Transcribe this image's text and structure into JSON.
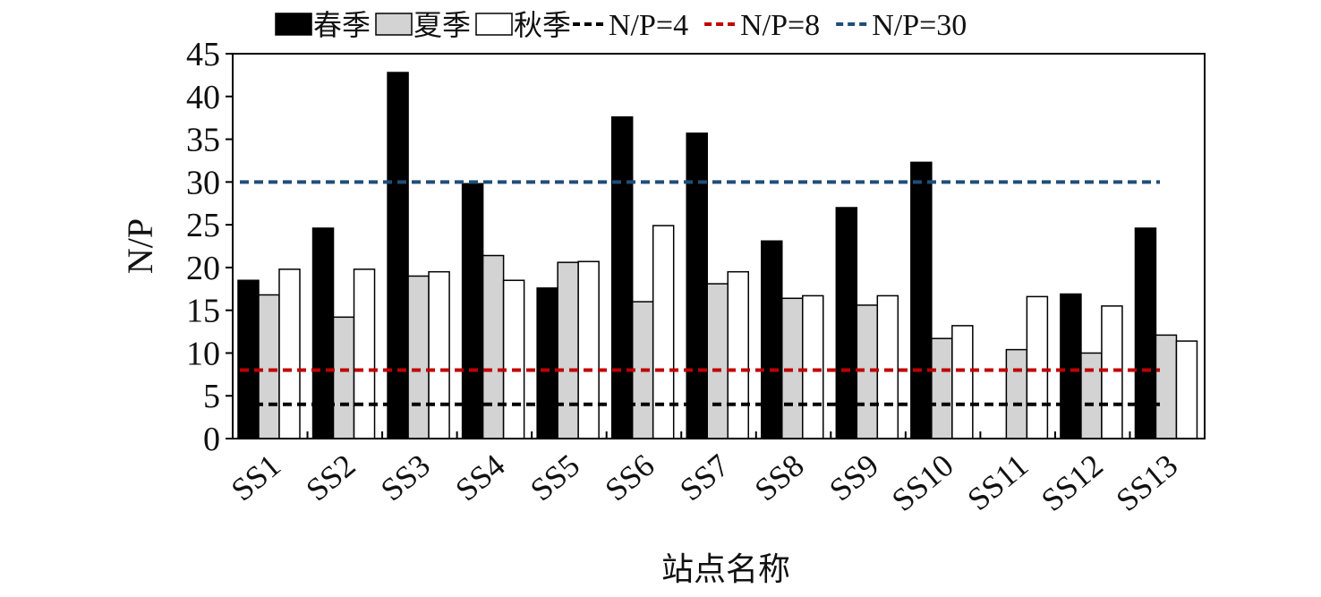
{
  "chart_data": {
    "type": "bar",
    "xlabel": "站点名称",
    "ylabel": "N/P",
    "ylim": [
      0,
      45
    ],
    "yticks": [
      "0",
      "5",
      "10",
      "15",
      "20",
      "25",
      "30",
      "35",
      "40",
      "45"
    ],
    "categories": [
      "SS1",
      "SS2",
      "SS3",
      "SS4",
      "SS5",
      "SS6",
      "SS7",
      "SS8",
      "SS9",
      "SS10",
      "SS11",
      "SS12",
      "SS13"
    ],
    "series": [
      {
        "name": "春季",
        "color": "#000000",
        "values": [
          18.5,
          24.6,
          42.8,
          29.8,
          17.6,
          37.6,
          35.7,
          23.1,
          27.0,
          32.3,
          0,
          16.9,
          24.6
        ]
      },
      {
        "name": "夏季",
        "color": "#d3d3d3",
        "values": [
          16.8,
          14.2,
          19.0,
          21.4,
          20.6,
          16.0,
          18.1,
          16.4,
          15.6,
          11.7,
          10.4,
          10.0,
          12.1
        ]
      },
      {
        "name": "秋季",
        "color": "#ffffff",
        "values": [
          19.8,
          19.8,
          19.5,
          18.5,
          20.7,
          24.9,
          19.5,
          16.7,
          16.7,
          13.2,
          16.6,
          15.5,
          11.4
        ]
      }
    ],
    "reference_lines": [
      {
        "name": "N/P=4",
        "value": 4,
        "color": "#000000"
      },
      {
        "name": "N/P=8",
        "value": 8,
        "color": "#c00000"
      },
      {
        "name": "N/P=30",
        "value": 30,
        "color": "#1f4e79"
      }
    ],
    "legend_position": "top",
    "grid": false
  }
}
